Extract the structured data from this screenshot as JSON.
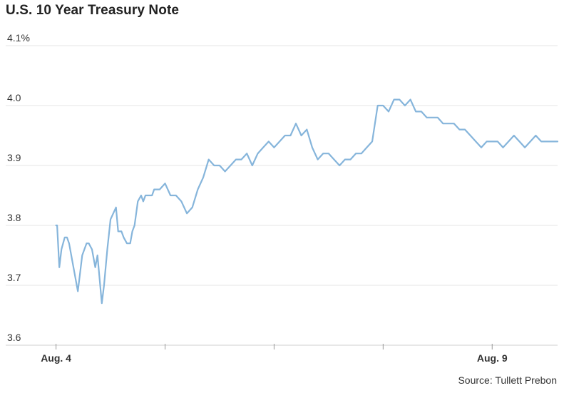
{
  "chart_data": {
    "type": "line",
    "title": "U.S. 10 Year Treasury Note",
    "xlabel": "",
    "ylabel": "",
    "y_ticks": [
      {
        "value": 4.1,
        "label": "4.1%"
      },
      {
        "value": 4.0,
        "label": "4.0"
      },
      {
        "value": 3.9,
        "label": "3.9"
      },
      {
        "value": 3.8,
        "label": "3.8"
      },
      {
        "value": 3.7,
        "label": "3.7"
      },
      {
        "value": 3.6,
        "label": "3.6"
      }
    ],
    "ylim": [
      3.6,
      4.1
    ],
    "x_ticks": [
      {
        "x": 0.0,
        "label": "Aug. 4"
      },
      {
        "x": 1.0,
        "label": ""
      },
      {
        "x": 2.0,
        "label": ""
      },
      {
        "x": 3.0,
        "label": ""
      },
      {
        "x": 4.0,
        "label": "Aug. 9"
      }
    ],
    "xlim": [
      -0.2,
      4.6
    ],
    "grid": true,
    "line_color": "#86b5db",
    "series": [
      {
        "name": "",
        "x": [
          0.0,
          0.01,
          0.03,
          0.05,
          0.08,
          0.1,
          0.12,
          0.15,
          0.2,
          0.24,
          0.28,
          0.3,
          0.33,
          0.36,
          0.38,
          0.42,
          0.44,
          0.47,
          0.5,
          0.55,
          0.57,
          0.6,
          0.62,
          0.65,
          0.68,
          0.7,
          0.72,
          0.75,
          0.78,
          0.8,
          0.82,
          0.85,
          0.88,
          0.9,
          0.95,
          1.0,
          1.05,
          1.1,
          1.15,
          1.2,
          1.25,
          1.3,
          1.35,
          1.4,
          1.45,
          1.5,
          1.55,
          1.6,
          1.65,
          1.7,
          1.75,
          1.8,
          1.85,
          1.9,
          1.95,
          2.0,
          2.05,
          2.1,
          2.15,
          2.2,
          2.25,
          2.3,
          2.35,
          2.4,
          2.45,
          2.5,
          2.55,
          2.6,
          2.65,
          2.7,
          2.75,
          2.8,
          2.85,
          2.9,
          2.95,
          3.0,
          3.05,
          3.1,
          3.15,
          3.2,
          3.25,
          3.3,
          3.35,
          3.4,
          3.45,
          3.5,
          3.55,
          3.6,
          3.65,
          3.7,
          3.75,
          3.8,
          3.85,
          3.9,
          3.95,
          4.0,
          4.05,
          4.1,
          4.15,
          4.2,
          4.25,
          4.3,
          4.35,
          4.4,
          4.45,
          4.5,
          4.55,
          4.6
        ],
        "y": [
          3.8,
          3.8,
          3.73,
          3.76,
          3.78,
          3.78,
          3.77,
          3.74,
          3.69,
          3.75,
          3.77,
          3.77,
          3.76,
          3.73,
          3.75,
          3.67,
          3.7,
          3.76,
          3.81,
          3.83,
          3.79,
          3.79,
          3.78,
          3.77,
          3.77,
          3.79,
          3.8,
          3.84,
          3.85,
          3.84,
          3.85,
          3.85,
          3.85,
          3.86,
          3.86,
          3.87,
          3.85,
          3.85,
          3.84,
          3.82,
          3.83,
          3.86,
          3.88,
          3.91,
          3.9,
          3.9,
          3.89,
          3.9,
          3.91,
          3.91,
          3.92,
          3.9,
          3.92,
          3.93,
          3.94,
          3.93,
          3.94,
          3.95,
          3.95,
          3.97,
          3.95,
          3.96,
          3.93,
          3.91,
          3.92,
          3.92,
          3.91,
          3.9,
          3.91,
          3.91,
          3.92,
          3.92,
          3.93,
          3.94,
          4.0,
          4.0,
          3.99,
          4.01,
          4.01,
          4.0,
          4.01,
          3.99,
          3.99,
          3.98,
          3.98,
          3.98,
          3.97,
          3.97,
          3.97,
          3.96,
          3.96,
          3.95,
          3.94,
          3.93,
          3.94,
          3.94,
          3.94,
          3.93,
          3.94,
          3.95,
          3.94,
          3.93,
          3.94,
          3.95,
          3.94,
          3.94,
          3.94,
          3.94
        ]
      }
    ]
  },
  "source_text": "Source: Tullett Prebon"
}
